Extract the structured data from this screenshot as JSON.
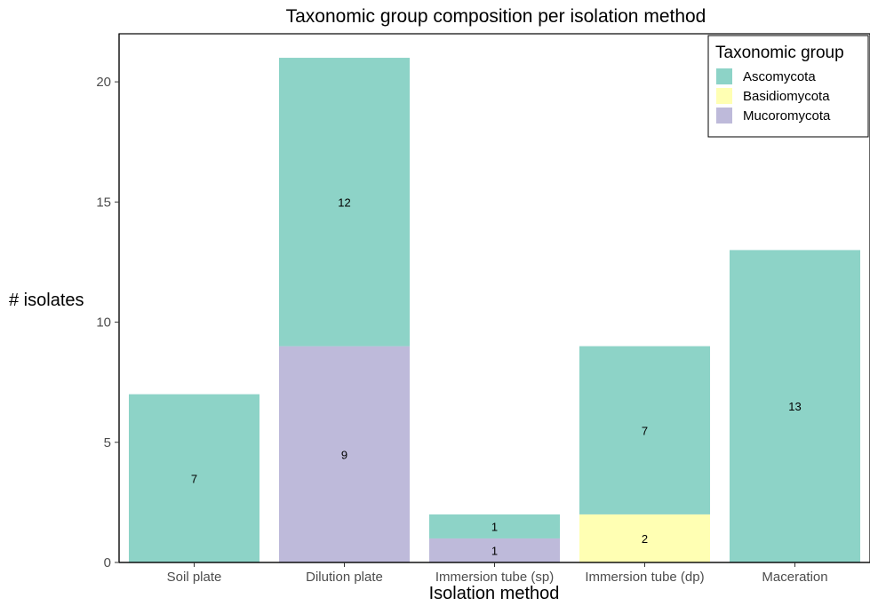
{
  "chart_data": {
    "type": "bar",
    "stacked": true,
    "title": "Taxonomic group composition per isolation method",
    "xlabel": "Isolation method",
    "ylabel": "# isolates",
    "ylim": [
      0,
      22
    ],
    "yticks": [
      0,
      5,
      10,
      15,
      20
    ],
    "grid": false,
    "legend_position": "top-right",
    "legend_title": "Taxonomic group",
    "categories": [
      "Soil plate",
      "Dilution plate",
      "Immersion tube (sp)",
      "Immersion tube (dp)",
      "Maceration"
    ],
    "series": [
      {
        "name": "Mucoromycota",
        "color": "#bebada",
        "values": [
          0,
          9,
          1,
          0,
          0
        ]
      },
      {
        "name": "Basidiomycota",
        "color": "#ffffb3",
        "values": [
          0,
          0,
          0,
          2,
          0
        ]
      },
      {
        "name": "Ascomycota",
        "color": "#8dd3c7",
        "values": [
          7,
          12,
          1,
          7,
          13
        ]
      }
    ],
    "legend_order": [
      "Ascomycota",
      "Basidiomycota",
      "Mucoromycota"
    ]
  }
}
